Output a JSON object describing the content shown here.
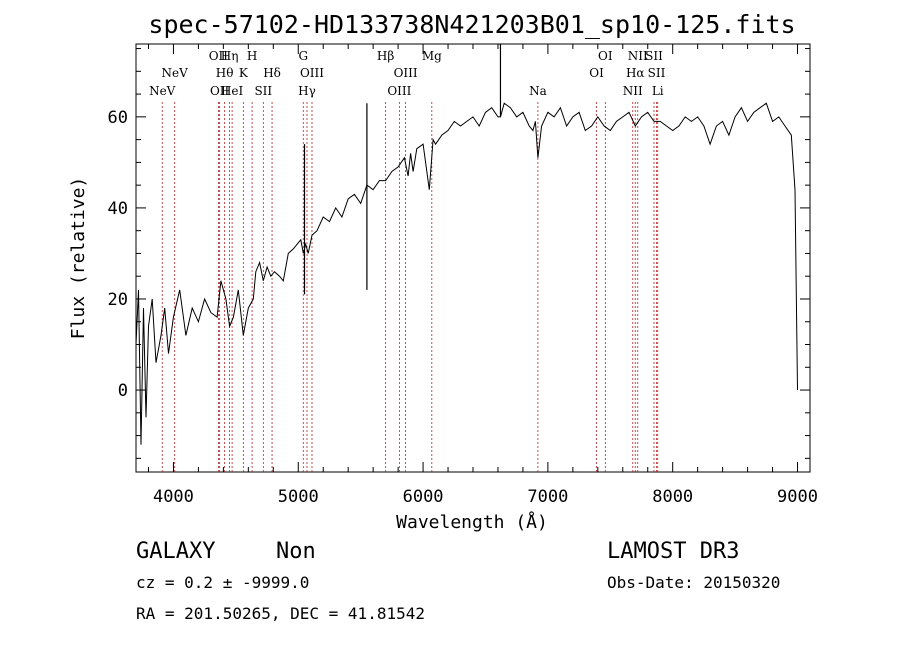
{
  "chart_data": {
    "type": "line",
    "title": "spec-57102-HD133738N421203B01_sp10-125.fits",
    "xlabel": "Wavelength (Å)",
    "ylabel": "Flux (relative)",
    "xlim": [
      3700,
      9100
    ],
    "ylim": [
      -18,
      76
    ],
    "xticks": [
      "4000",
      "5000",
      "6000",
      "7000",
      "8000",
      "9000"
    ],
    "yticks": [
      "0",
      "20",
      "40",
      "60"
    ],
    "series": [
      {
        "x": [
          3700,
          3720,
          3740,
          3760,
          3780,
          3800,
          3830,
          3860,
          3900,
          3930,
          3960,
          4000,
          4050,
          4100,
          4150,
          4200,
          4250,
          4300,
          4350,
          4380,
          4420,
          4450,
          4480,
          4520,
          4560,
          4600,
          4640,
          4660,
          4690,
          4720,
          4750,
          4780,
          4810,
          4850,
          4880,
          4920,
          4960,
          4990,
          5020,
          5040,
          5060,
          5080,
          5110,
          5150,
          5200,
          5250,
          5300,
          5350,
          5400,
          5450,
          5500,
          5550,
          5600,
          5650,
          5700,
          5750,
          5800,
          5850,
          5880,
          5900,
          5920,
          5950,
          6000,
          6050,
          6080,
          6100,
          6150,
          6200,
          6250,
          6300,
          6350,
          6400,
          6450,
          6500,
          6550,
          6600,
          6620,
          6650,
          6700,
          6750,
          6800,
          6850,
          6880,
          6900,
          6920,
          6950,
          7000,
          7050,
          7100,
          7150,
          7200,
          7250,
          7300,
          7350,
          7400,
          7450,
          7500,
          7550,
          7600,
          7650,
          7700,
          7750,
          7800,
          7850,
          7900,
          7950,
          8000,
          8050,
          8100,
          8150,
          8200,
          8250,
          8300,
          8350,
          8400,
          8450,
          8500,
          8550,
          8600,
          8650,
          8700,
          8750,
          8800,
          8850,
          8900,
          8950,
          8980,
          9000
        ],
        "y": [
          10,
          22,
          -12,
          18,
          -6,
          14,
          20,
          6,
          12,
          18,
          8,
          16,
          22,
          12,
          18,
          15,
          20,
          17,
          16,
          24,
          20,
          14,
          16,
          22,
          12,
          18,
          20,
          26,
          28,
          24,
          27,
          25,
          26,
          25,
          24,
          30,
          31,
          32,
          33,
          30,
          32,
          30,
          34,
          35,
          38,
          37,
          40,
          38,
          42,
          43,
          41,
          45,
          44,
          46,
          46,
          48,
          49,
          51,
          47,
          52,
          48,
          53,
          54,
          44,
          55,
          54,
          56,
          57,
          59,
          58,
          59,
          60,
          58,
          61,
          62,
          60,
          60,
          63,
          62,
          60,
          61,
          58,
          57,
          59,
          51,
          58,
          61,
          60,
          62,
          58,
          60,
          61,
          57,
          58,
          60,
          58,
          57,
          59,
          60,
          61,
          58,
          60,
          61,
          59,
          59,
          58,
          57,
          58,
          60,
          59,
          60,
          58,
          54,
          58,
          59,
          56,
          60,
          62,
          59,
          61,
          62,
          63,
          59,
          60,
          58,
          56,
          44,
          0
        ]
      }
    ],
    "spike": [
      {
        "x": 5550,
        "y": 63
      },
      {
        "x": 5560,
        "y": 22
      },
      {
        "x": 5050,
        "y": 54
      },
      {
        "x": 5060,
        "y": 21
      },
      {
        "x": 6620,
        "y": 76
      },
      {
        "x": 6630,
        "y": 60
      }
    ],
    "line_markers": [
      {
        "x": 3910,
        "label": "NeV",
        "row": 3
      },
      {
        "x": 4010,
        "label": "NeV",
        "row": 2
      },
      {
        "x": 4360,
        "label": "OII",
        "row": 1
      },
      {
        "x": 4370,
        "label": "OII",
        "row": 3
      },
      {
        "x": 4410,
        "label": "Hθ",
        "row": 2
      },
      {
        "x": 4450,
        "label": "Hη",
        "row": 1
      },
      {
        "x": 4470,
        "label": "HeI",
        "row": 3
      },
      {
        "x": 4560,
        "label": "K",
        "row": 2
      },
      {
        "x": 4630,
        "label": "H",
        "row": 1
      },
      {
        "x": 4720,
        "label": "SII",
        "row": 3
      },
      {
        "x": 4790,
        "label": "Hδ",
        "row": 2
      },
      {
        "x": 5040,
        "label": "G",
        "row": 1
      },
      {
        "x": 5070,
        "label": "Hγ",
        "row": 3
      },
      {
        "x": 5110,
        "label": "OIII",
        "row": 2
      },
      {
        "x": 5700,
        "label": "Hβ",
        "row": 1
      },
      {
        "x": 5810,
        "label": "OIII",
        "row": 3
      },
      {
        "x": 5860,
        "label": "OIII",
        "row": 2
      },
      {
        "x": 6070,
        "label": "Mg",
        "row": 1
      },
      {
        "x": 6920,
        "label": "Na",
        "row": 3
      },
      {
        "x": 7390,
        "label": "OI",
        "row": 2
      },
      {
        "x": 7460,
        "label": "OI",
        "row": 1
      },
      {
        "x": 7680,
        "label": "NII",
        "row": 3
      },
      {
        "x": 7700,
        "label": "Hα",
        "row": 2
      },
      {
        "x": 7720,
        "label": "NII",
        "row": 1
      },
      {
        "x": 7850,
        "label": "SII",
        "row": 1
      },
      {
        "x": 7870,
        "label": "SII",
        "row": 2
      },
      {
        "x": 7880,
        "label": "Li",
        "row": 3
      }
    ]
  },
  "info": {
    "class": "GALAXY",
    "subclass": "Non",
    "survey": "LAMOST DR3",
    "cz": "cz = 0.2 ± -9999.0",
    "obs_date": "Obs-Date: 20150320",
    "radec": "RA = 201.50265, DEC =  41.81542"
  }
}
